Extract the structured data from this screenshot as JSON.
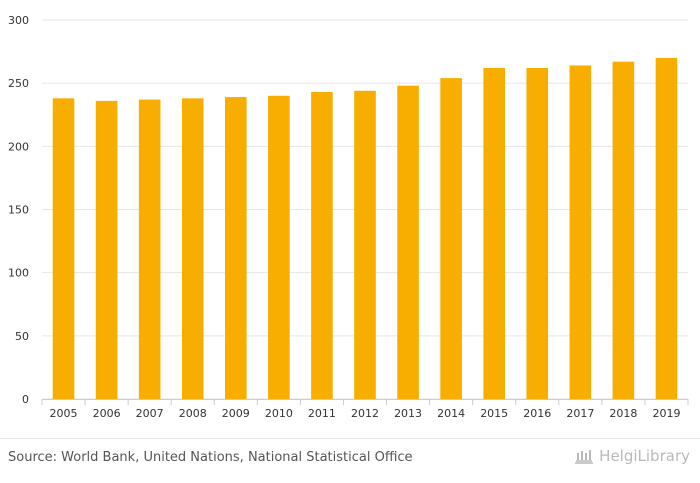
{
  "chart_data": {
    "type": "bar",
    "title": "",
    "xlabel": "",
    "ylabel": "",
    "categories": [
      "2005",
      "2006",
      "2007",
      "2008",
      "2009",
      "2010",
      "2011",
      "2012",
      "2013",
      "2014",
      "2015",
      "2016",
      "2017",
      "2018",
      "2019"
    ],
    "values": [
      238,
      236,
      237,
      238,
      239,
      240,
      243,
      244,
      248,
      254,
      262,
      262,
      264,
      267,
      270
    ],
    "ylim": [
      0,
      300
    ],
    "yticks": [
      0,
      50,
      100,
      150,
      200,
      250,
      300
    ],
    "grid": true,
    "bar_color": "#f7ae00"
  },
  "footer": {
    "source": "Source: World Bank, United Nations, National Statistical Office",
    "brand": "HelgiLibrary"
  },
  "colors": {
    "bar": "#f7ae00",
    "grid": "#e6e6e6",
    "tick_text": "#333333",
    "brand": "#b9b9b9"
  }
}
